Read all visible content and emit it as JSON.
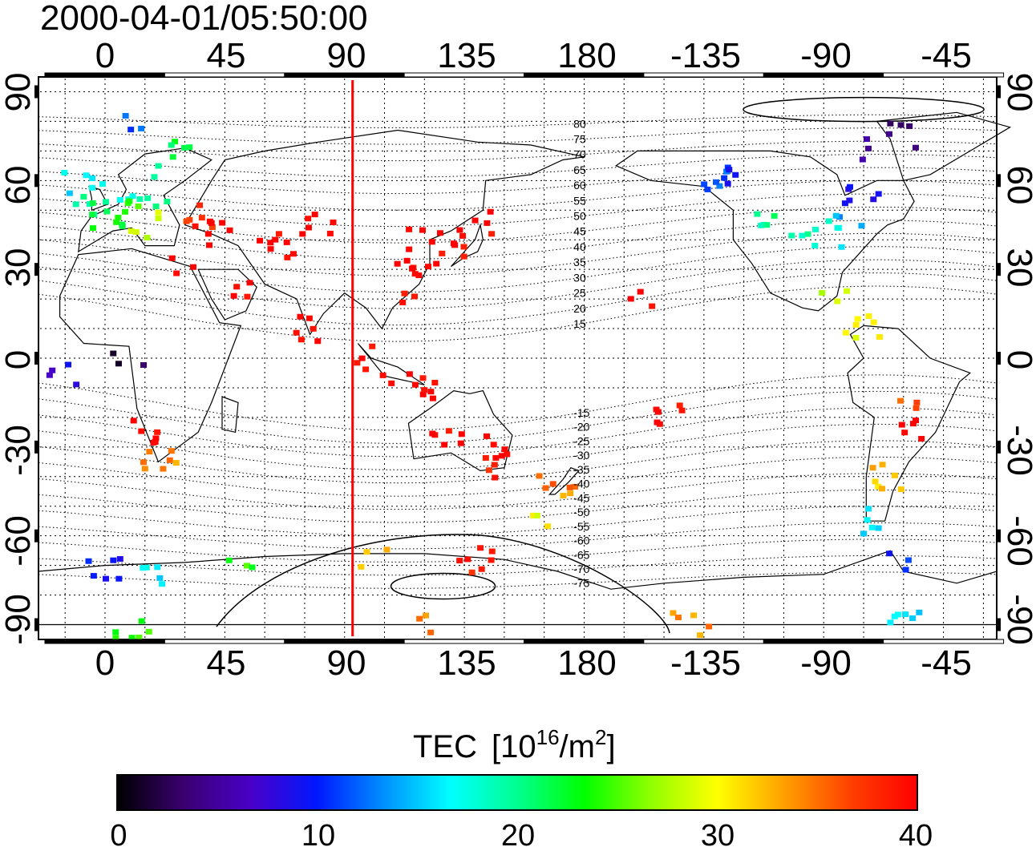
{
  "timestamp": "2000-04-01/05:50:00",
  "map": {
    "top_lon_labels": [
      "0",
      "45",
      "90",
      "135",
      "180",
      "-135",
      "-90",
      "-45"
    ],
    "bottom_lon_labels": [
      "0",
      "45",
      "90",
      "135",
      "180",
      "-135",
      "-90",
      "-45"
    ],
    "left_lat_labels": [
      "90",
      "60",
      "30",
      "0",
      "-30",
      "-60",
      "-90"
    ],
    "right_lat_labels": [
      "90",
      "60",
      "30",
      "0",
      "-30",
      "-60",
      "-90"
    ],
    "tick_lons": [
      0,
      45,
      90,
      135,
      180,
      225,
      270,
      315
    ],
    "tick_lats": [
      90,
      60,
      30,
      0,
      -30,
      -60,
      -90
    ],
    "lon_range": [
      -25,
      335
    ],
    "lat_range": [
      -95,
      95
    ],
    "red_meridian_lon": 93,
    "contour_labels": [
      "80",
      "75",
      "70",
      "65",
      "60",
      "55",
      "50",
      "45",
      "40",
      "35",
      "30",
      "25",
      "20",
      "15",
      "-15",
      "-20",
      "-25",
      "-30",
      "-35",
      "-40",
      "-45",
      "-50",
      "-55",
      "-60",
      "-65",
      "-70",
      "-75"
    ],
    "contour_label_lon": 179
  },
  "colorbar": {
    "title": "TEC",
    "unit_prefix": "[10",
    "unit_exp": "16",
    "unit_mid": "/m",
    "unit_exp2": "2",
    "unit_suffix": "]",
    "ticks": [
      "0",
      "10",
      "20",
      "30",
      "40"
    ],
    "min": 0,
    "max": 40,
    "stops": [
      "#000000",
      "#3a0070",
      "#4a00c8",
      "#0018ff",
      "#0090ff",
      "#00ffff",
      "#00ff90",
      "#00ff00",
      "#90ff00",
      "#ffff00",
      "#ffa000",
      "#ff4000",
      "#ff0000"
    ]
  },
  "tec_points": [
    {
      "lon": -5,
      "lat": 52,
      "v": 20
    },
    {
      "lon": 0,
      "lat": 48,
      "v": 22
    },
    {
      "lon": 5,
      "lat": 55,
      "v": 18
    },
    {
      "lon": 10,
      "lat": 50,
      "v": 24
    },
    {
      "lon": 15,
      "lat": 45,
      "v": 28
    },
    {
      "lon": 20,
      "lat": 55,
      "v": 19
    },
    {
      "lon": -10,
      "lat": 60,
      "v": 16
    },
    {
      "lon": 25,
      "lat": 65,
      "v": 21
    },
    {
      "lon": 30,
      "lat": 75,
      "v": 22
    },
    {
      "lon": 10,
      "lat": 78,
      "v": 12
    },
    {
      "lon": 35,
      "lat": 48,
      "v": 38
    },
    {
      "lon": 40,
      "lat": 42,
      "v": 40
    },
    {
      "lon": 60,
      "lat": 40,
      "v": 40
    },
    {
      "lon": 75,
      "lat": 35,
      "v": 40
    },
    {
      "lon": 80,
      "lat": 45,
      "v": 40
    },
    {
      "lon": 55,
      "lat": 25,
      "v": 40
    },
    {
      "lon": 75,
      "lat": 10,
      "v": 40
    },
    {
      "lon": 30,
      "lat": 30,
      "v": 40
    },
    {
      "lon": 115,
      "lat": 30,
      "v": 40
    },
    {
      "lon": 120,
      "lat": 40,
      "v": 40
    },
    {
      "lon": 125,
      "lat": 35,
      "v": 40
    },
    {
      "lon": 135,
      "lat": 38,
      "v": 40
    },
    {
      "lon": 140,
      "lat": 45,
      "v": 40
    },
    {
      "lon": 110,
      "lat": 20,
      "v": 40
    },
    {
      "lon": 100,
      "lat": 0,
      "v": 40
    },
    {
      "lon": 110,
      "lat": -5,
      "v": 40
    },
    {
      "lon": 120,
      "lat": -10,
      "v": 40
    },
    {
      "lon": 130,
      "lat": -25,
      "v": 40
    },
    {
      "lon": 145,
      "lat": -30,
      "v": 40
    },
    {
      "lon": 150,
      "lat": -38,
      "v": 38
    },
    {
      "lon": 170,
      "lat": -42,
      "v": 34
    },
    {
      "lon": 175,
      "lat": -40,
      "v": 36
    },
    {
      "lon": 160,
      "lat": -55,
      "v": 30
    },
    {
      "lon": 200,
      "lat": 20,
      "v": 40
    },
    {
      "lon": 210,
      "lat": -20,
      "v": 40
    },
    {
      "lon": 230,
      "lat": 60,
      "v": 12
    },
    {
      "lon": 240,
      "lat": 62,
      "v": 10
    },
    {
      "lon": 250,
      "lat": 45,
      "v": 20
    },
    {
      "lon": 260,
      "lat": 40,
      "v": 19
    },
    {
      "lon": 270,
      "lat": 42,
      "v": 17
    },
    {
      "lon": 280,
      "lat": 45,
      "v": 14
    },
    {
      "lon": 285,
      "lat": 55,
      "v": 9
    },
    {
      "lon": 290,
      "lat": 70,
      "v": 6
    },
    {
      "lon": 300,
      "lat": 75,
      "v": 4
    },
    {
      "lon": 275,
      "lat": 20,
      "v": 28
    },
    {
      "lon": 285,
      "lat": 10,
      "v": 30
    },
    {
      "lon": 300,
      "lat": -15,
      "v": 36
    },
    {
      "lon": 305,
      "lat": -25,
      "v": 40
    },
    {
      "lon": 295,
      "lat": -40,
      "v": 32
    },
    {
      "lon": 290,
      "lat": -55,
      "v": 16
    },
    {
      "lon": 295,
      "lat": -68,
      "v": 10
    },
    {
      "lon": 0,
      "lat": -72,
      "v": 10
    },
    {
      "lon": 20,
      "lat": -72,
      "v": 16
    },
    {
      "lon": 50,
      "lat": -70,
      "v": 24
    },
    {
      "lon": 100,
      "lat": -68,
      "v": 32
    },
    {
      "lon": 140,
      "lat": -68,
      "v": 38
    },
    {
      "lon": 10,
      "lat": -90,
      "v": 24
    },
    {
      "lon": 120,
      "lat": -90,
      "v": 34
    },
    {
      "lon": 220,
      "lat": -90,
      "v": 34
    },
    {
      "lon": 300,
      "lat": -90,
      "v": 16
    },
    {
      "lon": -15,
      "lat": -5,
      "v": 8
    },
    {
      "lon": 10,
      "lat": 0,
      "v": 2
    },
    {
      "lon": 20,
      "lat": -35,
      "v": 34
    },
    {
      "lon": 15,
      "lat": -25,
      "v": 40
    }
  ]
}
